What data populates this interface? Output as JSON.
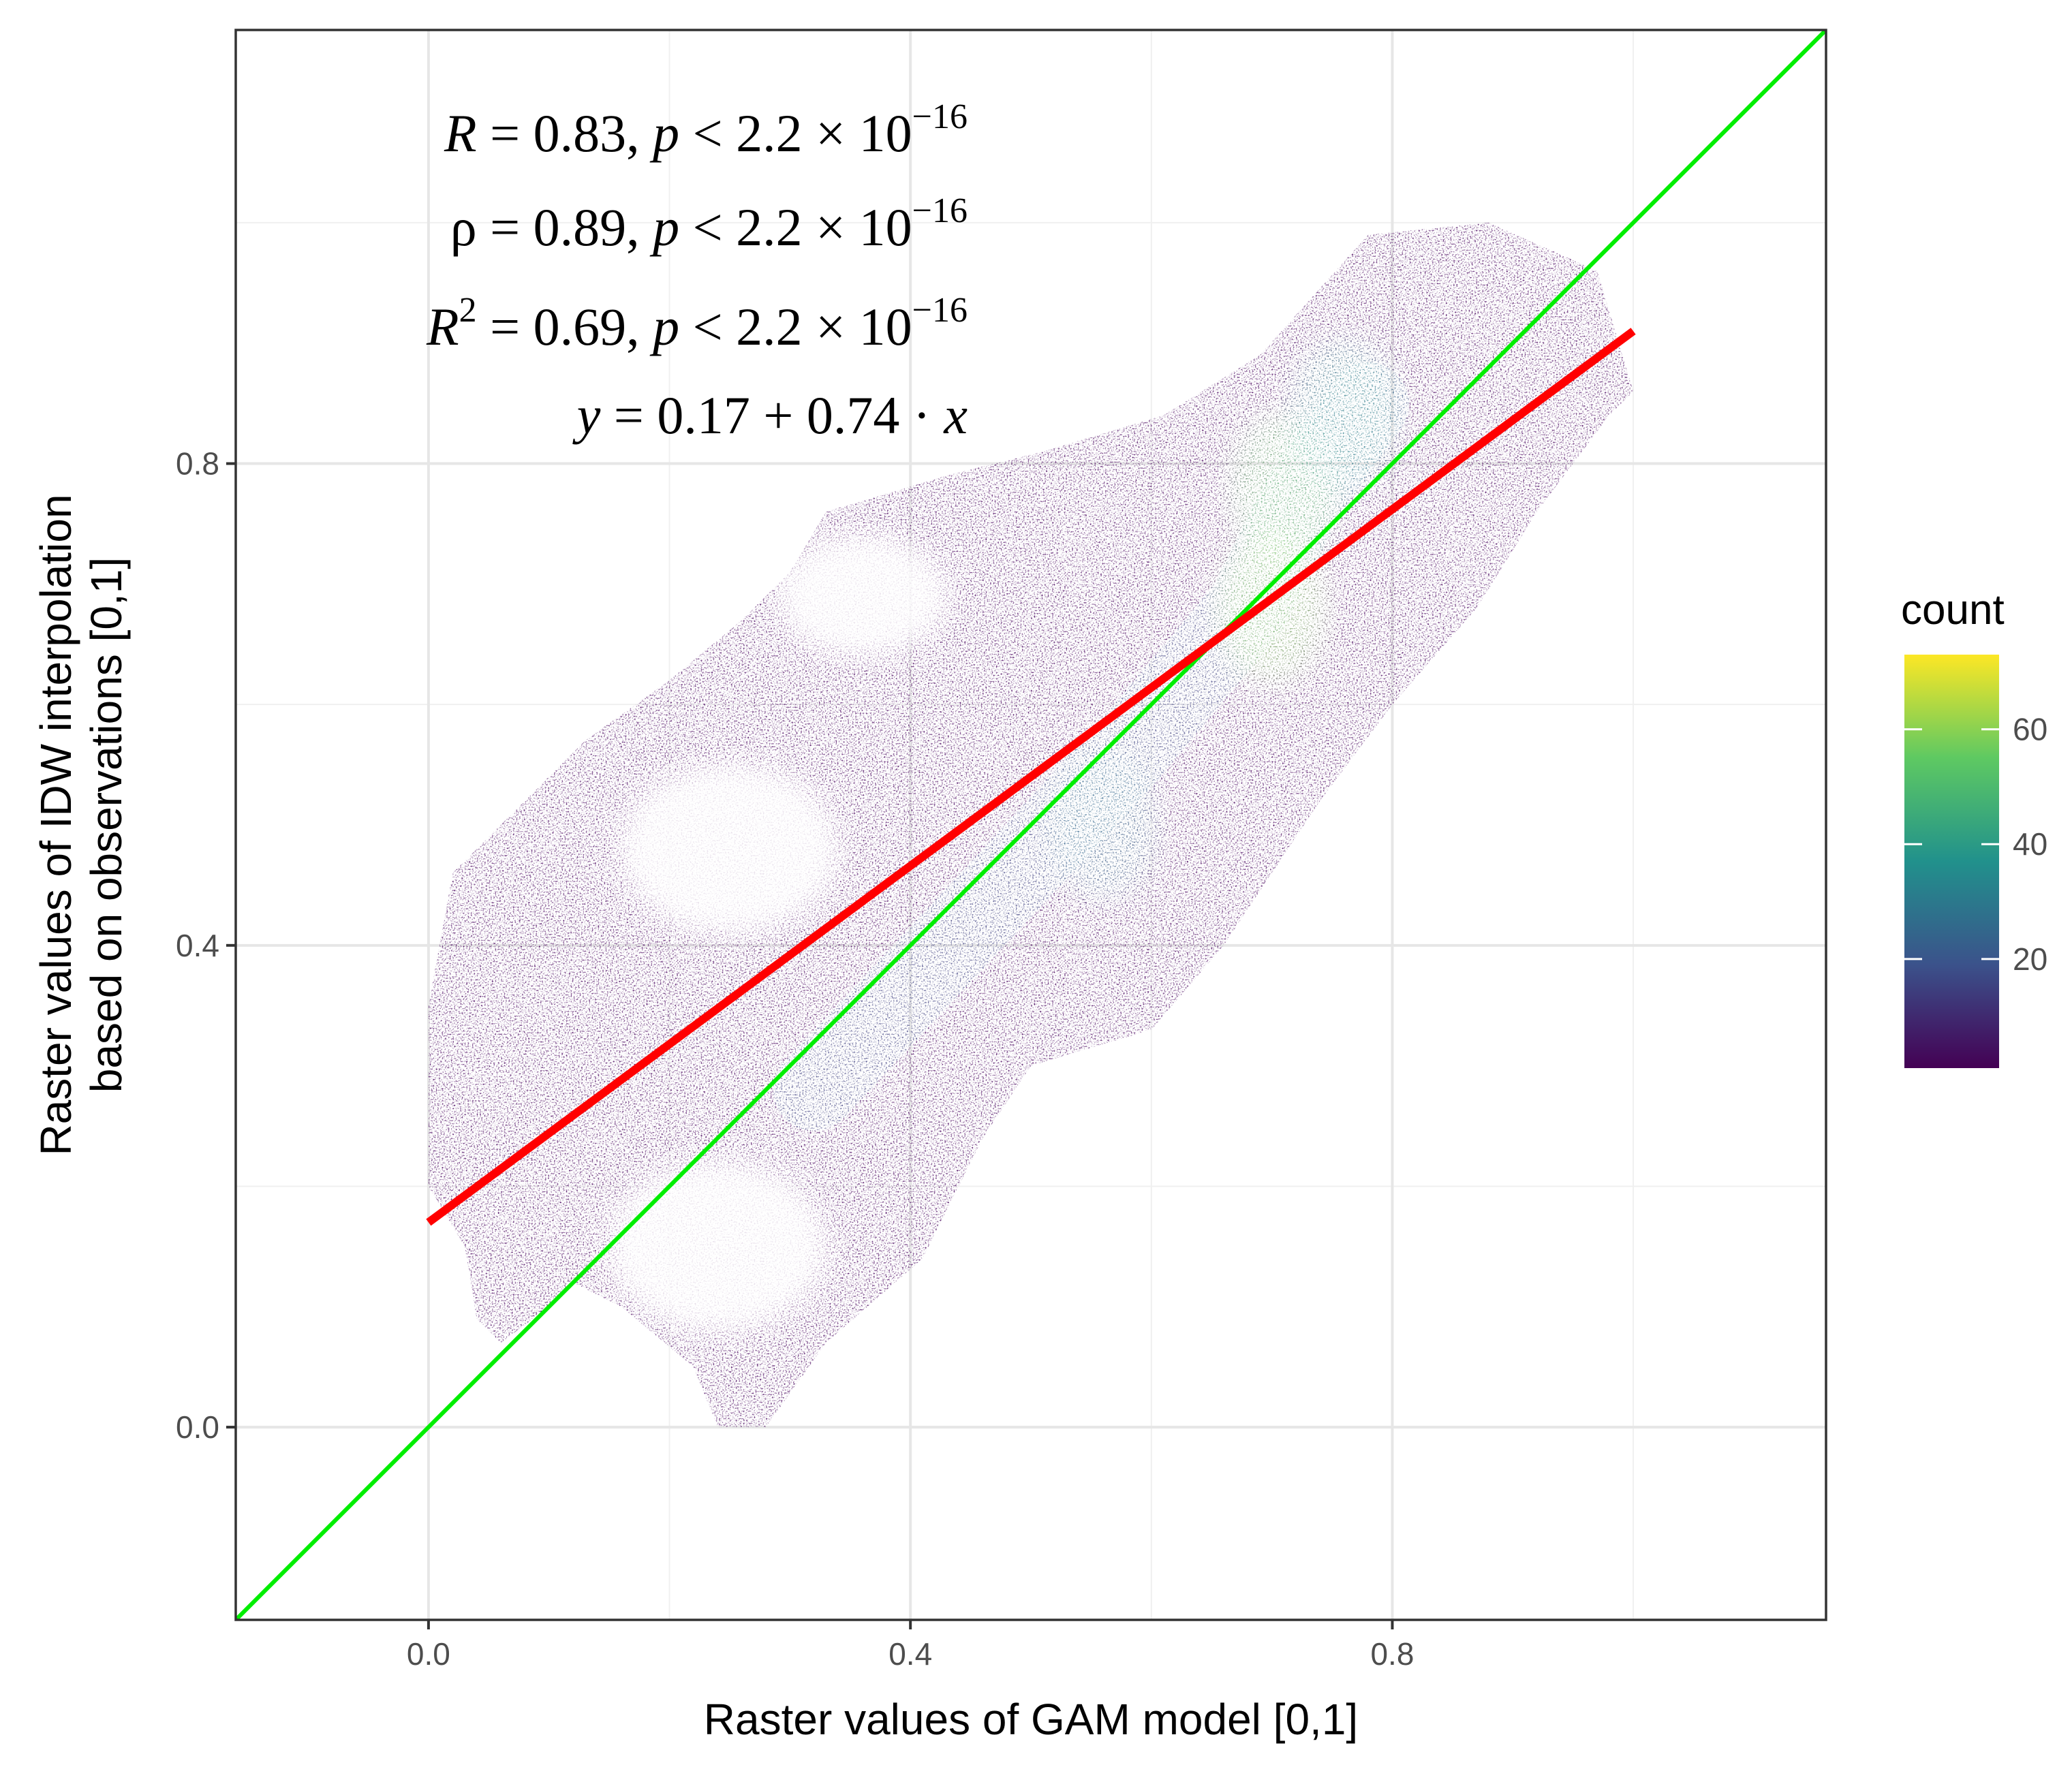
{
  "chart_data": {
    "type": "heatmap",
    "subtype": "2d-bin-count-scatter",
    "xlabel": "Raster values of GAM model [0,1]",
    "ylabel_line1": "Raster values of IDW interpolation",
    "ylabel_line2": "based on observations [0,1]",
    "xlim": [
      -0.16,
      1.16
    ],
    "ylim": [
      -0.16,
      1.16
    ],
    "x_ticks": [
      0.0,
      0.4,
      0.8
    ],
    "x_tick_labels": [
      "0.0",
      "0.4",
      "0.8"
    ],
    "y_ticks": [
      0.0,
      0.4,
      0.8
    ],
    "y_tick_labels": [
      "0.0",
      "0.4",
      "0.8"
    ],
    "minor_grid": [
      0.2,
      0.6,
      1.0
    ],
    "grid": true,
    "stats": {
      "r": {
        "label": "R",
        "value": "0.83",
        "p_mantissa": "2.2",
        "p_exponent": "−16"
      },
      "rho": {
        "label": "ρ",
        "value": "0.89",
        "p_mantissa": "2.2",
        "p_exponent": "−16"
      },
      "r2": {
        "label": "R",
        "label_sup": "2",
        "value": "0.69",
        "p_mantissa": "2.2",
        "p_exponent": "−16"
      },
      "equation": {
        "intercept": "0.17",
        "slope": "0.74"
      }
    },
    "regression_line": {
      "intercept": 0.17,
      "slope": 0.74,
      "x_range": [
        0.0,
        1.0
      ],
      "color": "#ff0000"
    },
    "identity_line": {
      "intercept": 0.0,
      "slope": 1.0,
      "x_range": [
        -0.16,
        1.16
      ],
      "color": "#00ee00"
    },
    "legend": {
      "title": "count",
      "placement": "right",
      "range": [
        1,
        73
      ],
      "ticks": [
        20,
        40,
        60
      ],
      "tick_labels": [
        "20",
        "40",
        "60"
      ],
      "colormap": "viridis",
      "stops": [
        "#440154",
        "#3b528b",
        "#21918c",
        "#5ec962",
        "#fde725"
      ]
    },
    "density_cloud": {
      "outline": [
        [
          0.0,
          0.35
        ],
        [
          0.02,
          0.46
        ],
        [
          0.06,
          0.5
        ],
        [
          0.13,
          0.57
        ],
        [
          0.2,
          0.62
        ],
        [
          0.26,
          0.67
        ],
        [
          0.3,
          0.71
        ],
        [
          0.33,
          0.76
        ],
        [
          0.43,
          0.79
        ],
        [
          0.51,
          0.81
        ],
        [
          0.61,
          0.84
        ],
        [
          0.69,
          0.89
        ],
        [
          0.78,
          0.99
        ],
        [
          0.88,
          1.0
        ],
        [
          0.97,
          0.96
        ],
        [
          1.0,
          0.86
        ],
        [
          0.98,
          0.84
        ],
        [
          0.92,
          0.76
        ],
        [
          0.87,
          0.68
        ],
        [
          0.8,
          0.6
        ],
        [
          0.74,
          0.52
        ],
        [
          0.66,
          0.4
        ],
        [
          0.6,
          0.33
        ],
        [
          0.5,
          0.3
        ],
        [
          0.46,
          0.24
        ],
        [
          0.41,
          0.14
        ],
        [
          0.33,
          0.07
        ],
        [
          0.28,
          0.0
        ],
        [
          0.24,
          0.0
        ],
        [
          0.22,
          0.05
        ],
        [
          0.16,
          0.1
        ],
        [
          0.12,
          0.12
        ],
        [
          0.1,
          0.1
        ],
        [
          0.06,
          0.07
        ],
        [
          0.04,
          0.09
        ],
        [
          0.03,
          0.15
        ],
        [
          0.0,
          0.2
        ]
      ],
      "ridge": [
        [
          0.32,
          0.28
        ],
        [
          0.46,
          0.43
        ],
        [
          0.58,
          0.56
        ],
        [
          0.68,
          0.68
        ],
        [
          0.73,
          0.78
        ],
        [
          0.78,
          0.85
        ]
      ],
      "hotspots": [
        [
          0.71,
          0.78
        ],
        [
          0.7,
          0.68
        ],
        [
          0.76,
          0.84
        ],
        [
          0.56,
          0.5
        ]
      ],
      "voids": [
        [
          0.25,
          0.48,
          0.09,
          0.07
        ],
        [
          0.24,
          0.15,
          0.09,
          0.07
        ],
        [
          0.36,
          0.69,
          0.07,
          0.05
        ]
      ]
    }
  }
}
